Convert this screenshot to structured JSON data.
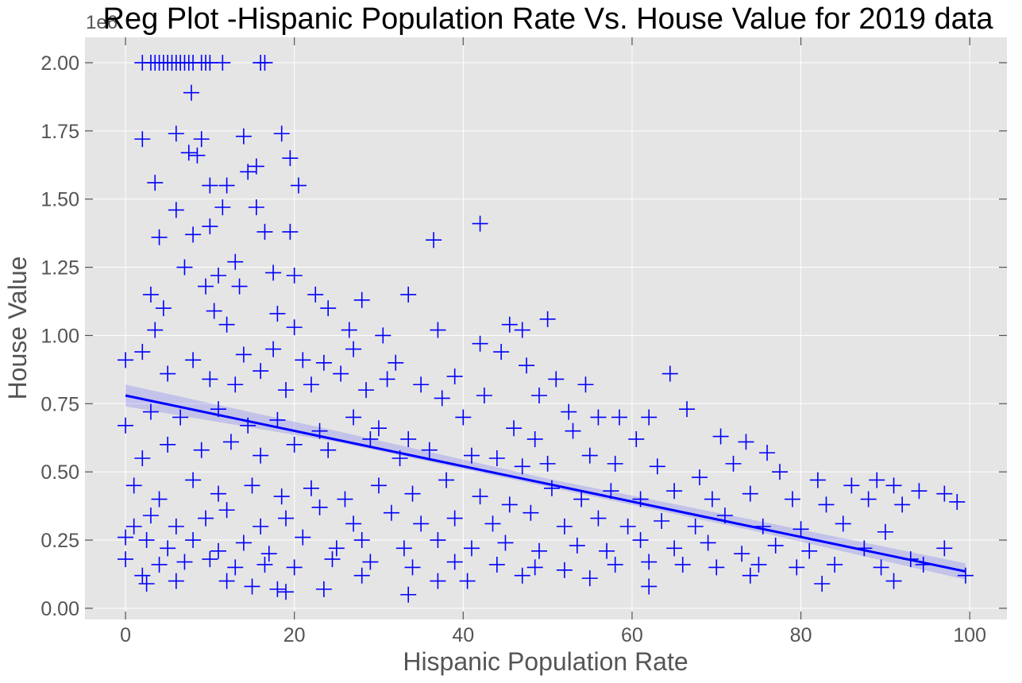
{
  "chart_data": {
    "type": "scatter",
    "title": "Reg Plot -Hispanic Population Rate Vs. House Value for 2019 data",
    "x_label": "Hispanic Population Rate",
    "y_label": "House Value",
    "y_offset_label": "1e6",
    "xlim": [
      -4.8,
      104.4
    ],
    "ylim": [
      -0.041,
      2.093
    ],
    "xticks": [
      0,
      20,
      40,
      60,
      80,
      100
    ],
    "yticks": [
      {
        "value": 0,
        "label": "0.00"
      },
      {
        "value": 0.25,
        "label": "0.25"
      },
      {
        "value": 0.5,
        "label": "0.50"
      },
      {
        "value": 0.75,
        "label": "0.75"
      },
      {
        "value": 1.0,
        "label": "1.00"
      },
      {
        "value": 1.25,
        "label": "1.25"
      },
      {
        "value": 1.5,
        "label": "1.50"
      },
      {
        "value": 1.75,
        "label": "1.75"
      },
      {
        "value": 2.0,
        "label": "2.00"
      }
    ],
    "grid": true,
    "marker": "+",
    "series": [
      {
        "color": "#0000ff",
        "x": [
          2,
          3,
          3.5,
          4,
          4.5,
          5,
          5.5,
          6,
          6.5,
          7,
          7.5,
          8,
          9,
          9.5,
          10,
          11.5,
          16,
          16.5,
          7.8,
          6,
          2,
          9,
          18.5,
          14,
          7.5,
          8.5,
          19.5,
          3.5,
          15.5,
          14.5,
          20.5,
          10,
          12,
          6,
          15.5,
          11.5,
          4,
          8,
          16.5,
          19.5,
          10,
          36.5,
          42,
          7,
          13,
          11,
          17.5,
          20,
          3,
          9.5,
          13.5,
          22.5,
          33.5,
          28,
          4.5,
          10.5,
          18,
          24,
          3.5,
          12,
          20,
          26.5,
          30.5,
          37,
          45.5,
          47,
          50,
          0,
          2,
          8,
          14,
          17.5,
          21,
          23.5,
          27,
          32,
          39,
          42,
          44.5,
          47.5,
          51,
          54.5,
          64.5,
          5,
          10,
          13,
          16,
          19,
          22,
          25.5,
          28.5,
          31,
          35,
          37.5,
          42.5,
          49,
          52.5,
          56,
          58.5,
          62,
          66.5,
          0,
          3,
          6.5,
          11,
          14.5,
          18,
          23,
          27,
          30,
          33.5,
          40,
          46,
          48.5,
          53,
          60.5,
          70.5,
          73.5,
          76,
          2,
          5,
          9,
          12.5,
          16,
          20,
          24,
          29,
          32.5,
          36,
          41,
          44,
          47,
          50,
          55,
          58,
          63,
          68,
          72,
          77.5,
          82,
          86,
          89,
          91,
          94,
          97,
          1,
          4,
          8,
          11,
          15,
          18.5,
          22,
          26,
          30,
          34,
          38,
          42,
          45.5,
          50.5,
          54,
          57.5,
          61,
          65,
          69.5,
          74,
          79,
          83,
          88,
          92,
          98.5,
          1,
          3,
          6,
          9.5,
          12,
          16,
          19,
          23,
          27,
          31.5,
          35,
          39,
          43.5,
          48,
          52,
          56,
          59.5,
          63.5,
          67.5,
          71,
          75.5,
          80,
          85,
          90,
          0,
          2.5,
          5,
          8,
          11,
          14,
          17,
          21,
          25,
          28,
          33,
          37,
          41,
          45,
          49,
          53.5,
          57,
          61,
          65,
          69,
          73,
          77,
          81,
          87.5,
          93,
          97,
          0,
          4,
          7,
          10,
          13,
          16.5,
          20,
          24.5,
          29,
          34,
          39,
          44,
          48.5,
          52,
          58,
          62,
          66,
          70,
          75,
          79.5,
          84,
          89.5,
          94.5,
          99.5,
          2,
          6,
          12,
          18,
          23.5,
          33.5,
          40.5,
          47,
          55,
          62,
          74,
          82.5,
          91,
          2.5,
          15,
          28,
          37,
          19
        ],
        "values": [
          2,
          2,
          2,
          2,
          2,
          2,
          2,
          2,
          2,
          2,
          2,
          2,
          2,
          2,
          2,
          2,
          2,
          2,
          1.89,
          1.74,
          1.72,
          1.72,
          1.74,
          1.73,
          1.67,
          1.66,
          1.65,
          1.56,
          1.62,
          1.6,
          1.55,
          1.55,
          1.55,
          1.46,
          1.47,
          1.47,
          1.36,
          1.37,
          1.38,
          1.38,
          1.4,
          1.35,
          1.41,
          1.25,
          1.27,
          1.22,
          1.23,
          1.22,
          1.15,
          1.18,
          1.18,
          1.15,
          1.15,
          1.13,
          1.1,
          1.09,
          1.08,
          1.1,
          1.02,
          1.04,
          1.03,
          1.02,
          1.0,
          1.02,
          1.04,
          1.02,
          1.06,
          0.91,
          0.94,
          0.91,
          0.93,
          0.95,
          0.91,
          0.9,
          0.95,
          0.9,
          0.85,
          0.97,
          0.94,
          0.89,
          0.84,
          0.82,
          0.86,
          0.86,
          0.84,
          0.82,
          0.87,
          0.8,
          0.82,
          0.86,
          0.8,
          0.84,
          0.82,
          0.77,
          0.78,
          0.78,
          0.72,
          0.7,
          0.7,
          0.7,
          0.73,
          0.67,
          0.72,
          0.7,
          0.73,
          0.67,
          0.69,
          0.65,
          0.7,
          0.66,
          0.62,
          0.7,
          0.66,
          0.62,
          0.65,
          0.62,
          0.63,
          0.61,
          0.57,
          0.55,
          0.6,
          0.58,
          0.61,
          0.56,
          0.6,
          0.58,
          0.62,
          0.55,
          0.58,
          0.56,
          0.55,
          0.52,
          0.53,
          0.56,
          0.53,
          0.52,
          0.48,
          0.53,
          0.5,
          0.47,
          0.45,
          0.47,
          0.45,
          0.43,
          0.42,
          0.45,
          0.4,
          0.47,
          0.42,
          0.45,
          0.41,
          0.44,
          0.4,
          0.45,
          0.42,
          0.47,
          0.41,
          0.38,
          0.44,
          0.4,
          0.43,
          0.4,
          0.43,
          0.4,
          0.42,
          0.4,
          0.38,
          0.4,
          0.38,
          0.39,
          0.3,
          0.34,
          0.3,
          0.33,
          0.36,
          0.3,
          0.33,
          0.37,
          0.31,
          0.35,
          0.31,
          0.33,
          0.31,
          0.35,
          0.3,
          0.33,
          0.3,
          0.32,
          0.3,
          0.34,
          0.3,
          0.29,
          0.31,
          0.28,
          0.26,
          0.25,
          0.22,
          0.25,
          0.21,
          0.24,
          0.2,
          0.26,
          0.22,
          0.25,
          0.22,
          0.25,
          0.22,
          0.24,
          0.21,
          0.23,
          0.21,
          0.25,
          0.22,
          0.24,
          0.2,
          0.23,
          0.21,
          0.22,
          0.18,
          0.22,
          0.18,
          0.16,
          0.17,
          0.18,
          0.15,
          0.16,
          0.15,
          0.18,
          0.17,
          0.15,
          0.17,
          0.16,
          0.15,
          0.14,
          0.16,
          0.17,
          0.16,
          0.15,
          0.16,
          0.15,
          0.16,
          0.15,
          0.16,
          0.12,
          0.12,
          0.1,
          0.1,
          0.07,
          0.07,
          0.05,
          0.1,
          0.12,
          0.11,
          0.08,
          0.12,
          0.09,
          0.1,
          0.09,
          0.08,
          0.12,
          0.1,
          0.06
        ]
      }
    ],
    "regression": {
      "color": "#0000ff",
      "x": [
        0,
        99.5
      ],
      "values": [
        0.78,
        0.135
      ]
    },
    "band": {
      "color": "#0000ff",
      "x": [
        0,
        25,
        50,
        75,
        99.5
      ],
      "lower": [
        0.74,
        0.61,
        0.445,
        0.28,
        0.105
      ],
      "upper": [
        0.82,
        0.65,
        0.475,
        0.32,
        0.165
      ]
    }
  }
}
